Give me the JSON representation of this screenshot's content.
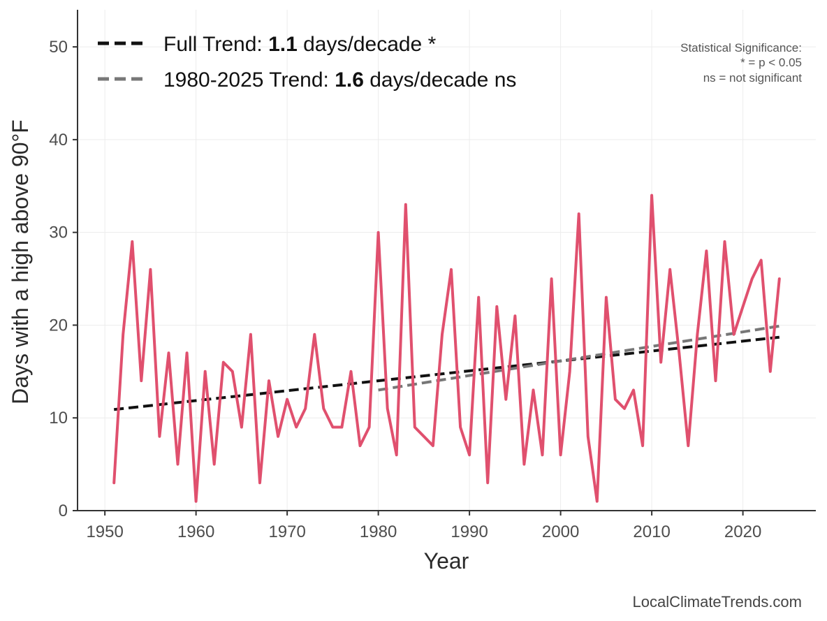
{
  "chart_data": {
    "type": "line",
    "xlabel": "Year",
    "ylabel": "Days with a high above 90°F",
    "xlim": [
      1947,
      2028
    ],
    "ylim": [
      0,
      54
    ],
    "xticks": [
      1950,
      1960,
      1970,
      1980,
      1990,
      2000,
      2010,
      2020
    ],
    "yticks": [
      0,
      10,
      20,
      30,
      40,
      50
    ],
    "grid": true,
    "legend_position": "top-left",
    "series": [
      {
        "color": "#e0506e",
        "x": [
          1951,
          1952,
          1953,
          1954,
          1955,
          1956,
          1957,
          1958,
          1959,
          1960,
          1961,
          1962,
          1963,
          1964,
          1965,
          1966,
          1967,
          1968,
          1969,
          1970,
          1971,
          1972,
          1973,
          1974,
          1975,
          1976,
          1977,
          1978,
          1979,
          1980,
          1981,
          1982,
          1983,
          1984,
          1985,
          1986,
          1987,
          1988,
          1989,
          1990,
          1991,
          1992,
          1993,
          1994,
          1995,
          1996,
          1997,
          1998,
          1999,
          2000,
          2001,
          2002,
          2003,
          2004,
          2005,
          2006,
          2007,
          2008,
          2009,
          2010,
          2011,
          2012,
          2013,
          2014,
          2015,
          2016,
          2017,
          2018,
          2019,
          2020,
          2021,
          2022,
          2023,
          2024
        ],
        "y": [
          3,
          19,
          29,
          14,
          26,
          8,
          17,
          5,
          17,
          1,
          15,
          5,
          16,
          15,
          9,
          19,
          3,
          14,
          8,
          12,
          9,
          11,
          19,
          11,
          9,
          9,
          15,
          7,
          9,
          30,
          11,
          6,
          33,
          9,
          8,
          7,
          19,
          26,
          9,
          6,
          23,
          3,
          22,
          12,
          21,
          5,
          13,
          6,
          25,
          6,
          15,
          32,
          8,
          1,
          23,
          12,
          11,
          13,
          7,
          34,
          16,
          26,
          17,
          7,
          19,
          28,
          14,
          29,
          19,
          22,
          25,
          27,
          15,
          25
        ]
      }
    ],
    "trends": [
      {
        "label_prefix": "Full Trend: ",
        "label_value": "1.1",
        "label_suffix": " days/decade *",
        "color": "#111111",
        "x": [
          1951,
          2024
        ],
        "y": [
          10.9,
          18.7
        ]
      },
      {
        "label_prefix": "1980-2025 Trend: ",
        "label_value": "1.6",
        "label_suffix": " days/decade ns",
        "color": "#777777",
        "x": [
          1980,
          2024
        ],
        "y": [
          13.0,
          19.9
        ]
      }
    ],
    "annotations": [
      "Statistical Significance:",
      "* = p < 0.05",
      "ns = not significant"
    ]
  },
  "credit": "LocalClimateTrends.com"
}
